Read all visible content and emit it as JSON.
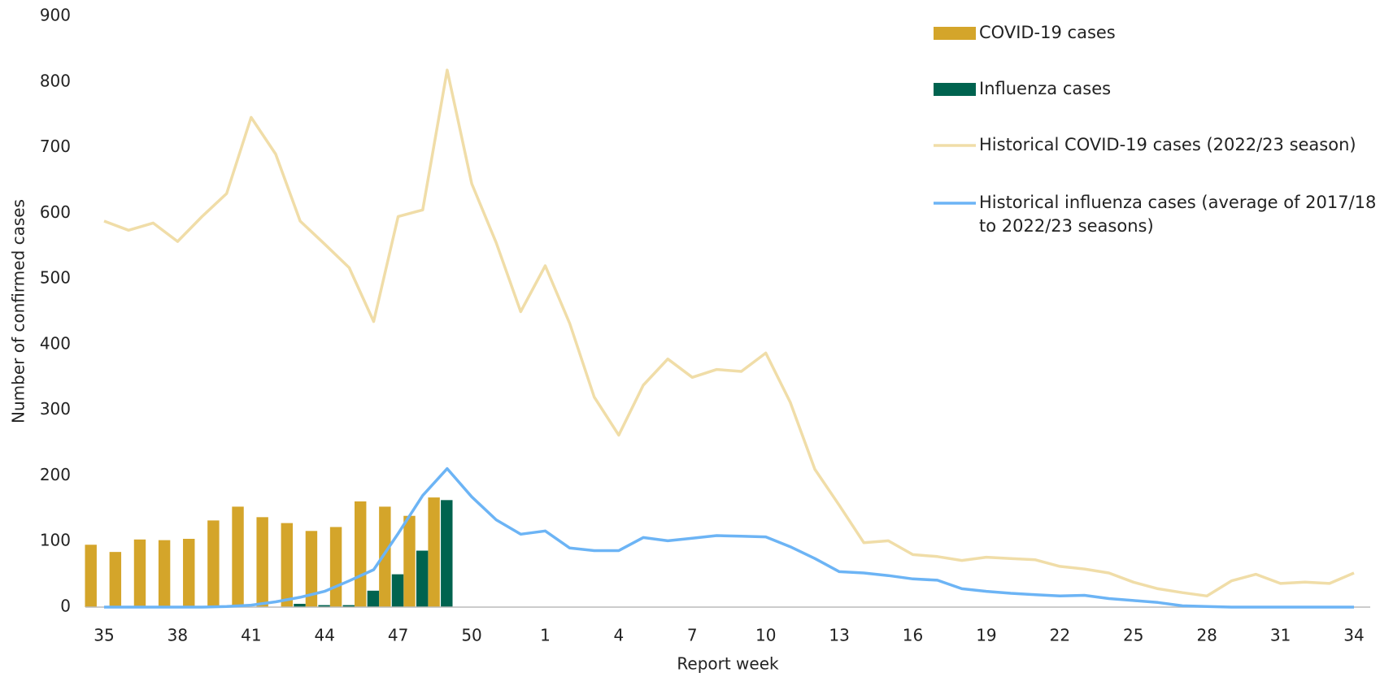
{
  "chart_data": {
    "type": "bar",
    "x_label": "Report week",
    "y_label": "Number of confirmed cases",
    "categories": [
      35,
      null,
      null,
      38,
      null,
      null,
      41,
      null,
      null,
      44,
      null,
      null,
      47,
      null,
      null,
      50,
      null,
      null,
      1,
      null,
      null,
      4,
      null,
      null,
      7,
      null,
      null,
      10,
      null,
      null,
      13,
      null,
      null,
      16,
      null,
      null,
      19,
      null,
      null,
      22,
      null,
      null,
      25,
      null,
      null,
      28,
      null,
      null,
      31,
      null,
      null,
      34
    ],
    "ylim": [
      0,
      900
    ],
    "yticks": [
      0,
      100,
      200,
      300,
      400,
      500,
      600,
      700,
      800,
      900
    ],
    "grid": false,
    "series": [
      {
        "name": "COVID-19 cases",
        "type": "bar",
        "color": "#d4a52a",
        "values": [
          95,
          84,
          103,
          102,
          104,
          132,
          153,
          137,
          128,
          116,
          122,
          161,
          153,
          139,
          167,
          null,
          null,
          null,
          null,
          null,
          null,
          null,
          null,
          null,
          null,
          null,
          null,
          null,
          null,
          null,
          null,
          null,
          null,
          null,
          null,
          null,
          null,
          null,
          null,
          null,
          null,
          null,
          null,
          null,
          null,
          null,
          null,
          null,
          null,
          null,
          null,
          null
        ]
      },
      {
        "name": "Influenza cases",
        "type": "bar",
        "color": "#00634f",
        "values": [
          0,
          0,
          0,
          0,
          0,
          0,
          0,
          0,
          5,
          3,
          3,
          25,
          50,
          86,
          163,
          null,
          null,
          null,
          null,
          null,
          null,
          null,
          null,
          null,
          null,
          null,
          null,
          null,
          null,
          null,
          null,
          null,
          null,
          null,
          null,
          null,
          null,
          null,
          null,
          null,
          null,
          null,
          null,
          null,
          null,
          null,
          null,
          null,
          null,
          null,
          null,
          null
        ]
      },
      {
        "name": "Historical COVID-19 cases (2022/23 season)",
        "type": "line",
        "color": "#f0dda8",
        "values": [
          588,
          574,
          585,
          557,
          595,
          630,
          746,
          690,
          588,
          553,
          517,
          435,
          595,
          605,
          818,
          645,
          555,
          450,
          520,
          432,
          320,
          262,
          338,
          378,
          350,
          362,
          359,
          387,
          312,
          210,
          155,
          98,
          101,
          80,
          77,
          71,
          76,
          74,
          72,
          62,
          58,
          52,
          38,
          28,
          22,
          17,
          40,
          50,
          36,
          38,
          36,
          52
        ]
      },
      {
        "name": "Historical influenza cases (average of 2017/18 to 2022/23 seasons)",
        "type": "line",
        "color": "#6cb4f5",
        "values": [
          0,
          0,
          0,
          0,
          0,
          1,
          3,
          8,
          15,
          24,
          40,
          57,
          112,
          170,
          211,
          168,
          133,
          111,
          116,
          90,
          86,
          86,
          106,
          101,
          105,
          109,
          108,
          107,
          92,
          74,
          54,
          52,
          48,
          43,
          41,
          28,
          24,
          21,
          19,
          17,
          18,
          13,
          10,
          7,
          2,
          1,
          0,
          0,
          0,
          0,
          0,
          0
        ]
      }
    ]
  }
}
